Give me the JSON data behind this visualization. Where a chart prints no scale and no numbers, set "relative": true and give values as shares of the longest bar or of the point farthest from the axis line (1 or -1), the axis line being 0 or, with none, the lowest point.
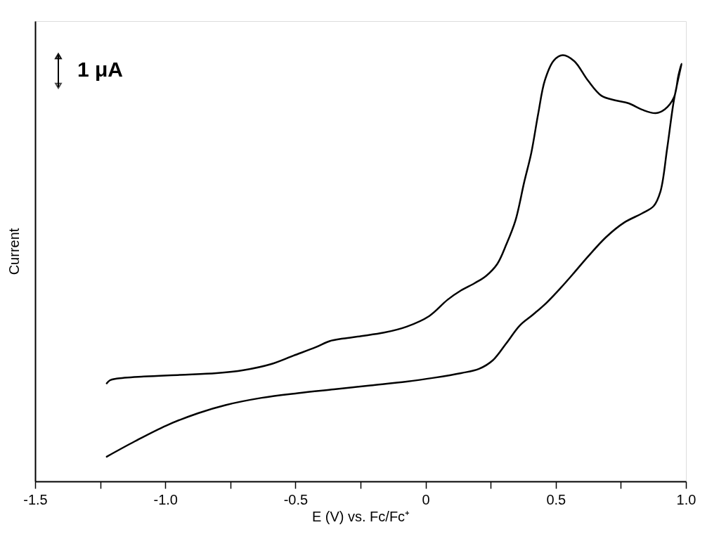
{
  "chart_data": {
    "type": "line",
    "relative": true,
    "xlabel": "E (V) vs. Fc/Fc⁺",
    "ylabel": "Current",
    "xlim": [
      -1.5,
      1.0
    ],
    "xticks": [
      -1.5,
      {
        "value": -1.25,
        "label": null
      },
      {
        "value": -1.0,
        "label": "-1.0"
      },
      {
        "value": -0.75,
        "label": null
      },
      -0.5,
      {
        "value": -0.25,
        "label": null
      },
      0,
      {
        "value": 0.25,
        "label": null
      },
      0.5,
      {
        "value": 0.75,
        "label": null
      },
      {
        "value": 1.0,
        "label": "1.0"
      }
    ],
    "annotations": [
      "1 μA"
    ],
    "grid": false,
    "legend": false,
    "marker": "none",
    "line_style": "solid",
    "series": [
      {
        "color": "#000000",
        "x": [
          -1.225,
          -1.117,
          -0.996,
          -0.874,
          -0.769,
          -0.63,
          -0.491,
          -0.352,
          -0.212,
          -0.073,
          0.031,
          0.136,
          0.205,
          0.258,
          0.31,
          0.362,
          0.414,
          0.466,
          0.519,
          0.571,
          0.623,
          0.693,
          0.762,
          0.832,
          0.876,
          0.902,
          0.928,
          0.954,
          0.983,
          0.971,
          0.954,
          0.919,
          0.884,
          0.832,
          0.78,
          0.728,
          0.675,
          0.623,
          0.571,
          0.527,
          0.493,
          0.458,
          0.432,
          0.406,
          0.379,
          0.345,
          0.31,
          0.275,
          0.232,
          0.188,
          0.136,
          0.084,
          0.014,
          -0.073,
          -0.16,
          -0.247,
          -0.317,
          -0.369,
          -0.421,
          -0.508,
          -0.595,
          -0.7,
          -0.804,
          -0.943,
          -1.083,
          -1.187,
          -1.213,
          -1.225
        ],
        "values": [
          0.058,
          0.094,
          0.131,
          0.16,
          0.179,
          0.196,
          0.207,
          0.216,
          0.225,
          0.234,
          0.243,
          0.254,
          0.264,
          0.284,
          0.324,
          0.366,
          0.392,
          0.42,
          0.454,
          0.49,
          0.527,
          0.573,
          0.607,
          0.629,
          0.646,
          0.68,
          0.782,
          0.895,
          0.98,
          0.952,
          0.901,
          0.873,
          0.864,
          0.872,
          0.887,
          0.894,
          0.905,
          0.941,
          0.986,
          1.0,
          0.988,
          0.941,
          0.861,
          0.771,
          0.703,
          0.612,
          0.556,
          0.51,
          0.482,
          0.465,
          0.448,
          0.426,
          0.388,
          0.363,
          0.349,
          0.341,
          0.335,
          0.329,
          0.315,
          0.295,
          0.275,
          0.261,
          0.254,
          0.25,
          0.246,
          0.241,
          0.237,
          0.23
        ]
      }
    ]
  }
}
